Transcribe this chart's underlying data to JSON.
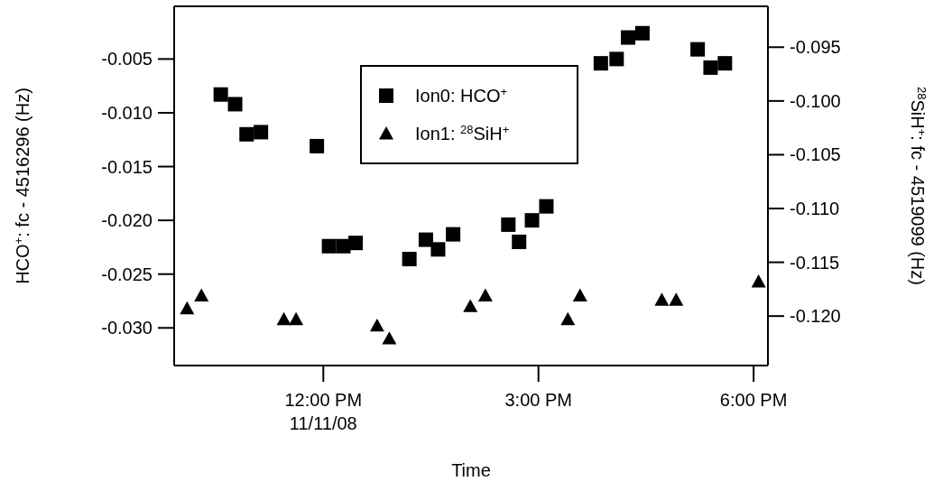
{
  "chart_data": {
    "type": "scatter",
    "xlabel": "Time",
    "ylabel": "HCO$^{+}$: fc - 4516296 (Hz)",
    "y2label": "$^{28}$SiH$^{+}$: fc - 4519099 (Hz)",
    "xlim": [
      9.92,
      18.2
    ],
    "xticks": [
      {
        "value": 12,
        "label": "12:00 PM\n11/11/08"
      },
      {
        "value": 15,
        "label": "3:00 PM"
      },
      {
        "value": 18,
        "label": "6:00 PM"
      }
    ],
    "ylim": [
      -0.0335,
      -0.0001
    ],
    "yticks": [
      {
        "value": -0.005,
        "label": "-0.005"
      },
      {
        "value": -0.01,
        "label": "-0.010"
      },
      {
        "value": -0.015,
        "label": "-0.015"
      },
      {
        "value": -0.02,
        "label": "-0.020"
      },
      {
        "value": -0.025,
        "label": "-0.025"
      },
      {
        "value": -0.03,
        "label": "-0.030"
      }
    ],
    "y2lim": [
      -0.1246,
      -0.0912
    ],
    "y2ticks": [
      {
        "value": -0.095,
        "label": "-0.095"
      },
      {
        "value": -0.1,
        "label": "-0.100"
      },
      {
        "value": -0.105,
        "label": "-0.105"
      },
      {
        "value": -0.11,
        "label": "-0.110"
      },
      {
        "value": -0.115,
        "label": "-0.115"
      },
      {
        "value": -0.12,
        "label": "-0.120"
      }
    ],
    "legend": "top",
    "grid": false,
    "series": [
      {
        "name": "Ion0: HCO$^{+}$",
        "color": "#000000",
        "marker": "square",
        "x": [
          10.57,
          10.77,
          10.93,
          11.13,
          11.91,
          12.08,
          12.28,
          12.45,
          13.2,
          13.43,
          13.6,
          13.81,
          14.58,
          14.73,
          14.91,
          15.11,
          15.87,
          16.09,
          16.25,
          16.45,
          17.22,
          17.4,
          17.6
        ],
        "values": [
          -0.0083,
          -0.0092,
          -0.012,
          -0.0118,
          -0.0131,
          -0.0224,
          -0.0224,
          -0.0221,
          -0.0236,
          -0.0218,
          -0.0227,
          -0.0213,
          -0.0204,
          -0.022,
          -0.02,
          -0.0187,
          -0.0054,
          -0.005,
          -0.003,
          -0.0026,
          -0.0041,
          -0.0058,
          -0.0054
        ]
      },
      {
        "name": "Ion1: $^{28}$SiH$^{+}$",
        "color": "#000000",
        "marker": "triangle",
        "axis": "y2",
        "x": [
          10.1,
          10.3,
          11.45,
          11.62,
          12.75,
          12.92,
          14.05,
          14.26,
          15.41,
          15.58,
          16.72,
          16.92,
          18.07
        ],
        "values": [
          -0.1193,
          -0.1181,
          -0.1203,
          -0.1203,
          -0.1209,
          -0.1221,
          -0.1191,
          -0.1181,
          -0.1203,
          -0.1181,
          -0.1185,
          -0.1185,
          -0.1168
        ]
      }
    ]
  }
}
